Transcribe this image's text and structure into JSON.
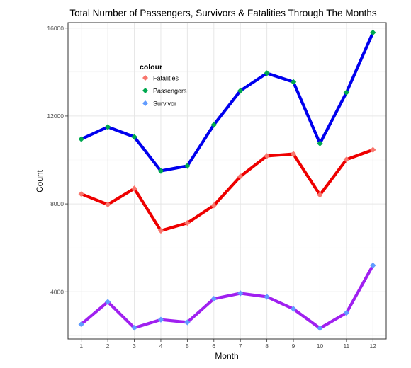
{
  "chart_data": {
    "type": "line",
    "title": "Total Number of Passengers, Survivors & Fatalities Through The Months",
    "xlabel": "Month",
    "ylabel": "Count",
    "categories": [
      "1",
      "2",
      "3",
      "4",
      "5",
      "6",
      "7",
      "8",
      "9",
      "10",
      "11",
      "12"
    ],
    "x": [
      1,
      2,
      3,
      4,
      5,
      6,
      7,
      8,
      9,
      10,
      11,
      12
    ],
    "xlim": [
      0.5,
      12.5
    ],
    "ylim": [
      1850,
      16250
    ],
    "yticks": [
      4000,
      8000,
      12000,
      16000
    ],
    "ytick_labels": [
      "4000",
      "8000",
      "12000",
      "16000"
    ],
    "grid": true,
    "legend": {
      "title": "colour",
      "placement": "top-left inside",
      "entries": [
        "Fatalities",
        "Passengers",
        "Survivor"
      ]
    },
    "series": [
      {
        "name": "Passengers",
        "values": [
          10950,
          11500,
          11050,
          9500,
          9730,
          11600,
          13150,
          13950,
          13550,
          10750,
          13070,
          15800
        ],
        "line_color": "#0000ee",
        "marker_color": "#00a84f"
      },
      {
        "name": "Fatalities",
        "values": [
          8450,
          7970,
          8700,
          6780,
          7130,
          7930,
          9250,
          10180,
          10270,
          8410,
          10020,
          10460
        ],
        "line_color": "#ee0000",
        "marker_color": "#f8766d"
      },
      {
        "name": "Survivor",
        "values": [
          2520,
          3540,
          2360,
          2730,
          2610,
          3680,
          3930,
          3770,
          3220,
          2340,
          3040,
          5200
        ],
        "line_color": "#a020f0",
        "marker_color": "#619cff"
      }
    ]
  }
}
